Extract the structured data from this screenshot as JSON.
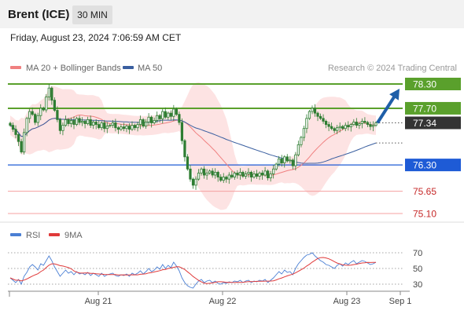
{
  "header": {
    "instrument": "Brent (ICE)",
    "interval": "30 MIN"
  },
  "datetime": "Friday, August 23, 2024 7:06:59 AM CET",
  "credit": "Research © 2024 Trading Central",
  "colors": {
    "bollinger": "#f08080",
    "bollinger_fill": "#fde0e0",
    "ma50": "#3a5fa0",
    "candle": "#2e7d32",
    "resistance": "#5aa02c",
    "support": "#1e5bd6",
    "lower_level": "#f4a0a0",
    "arrow": "#1f5fa8",
    "current_price_tag": "#333333",
    "rsi": "#4a7fd4",
    "rsi_ma": "#e03a3a"
  },
  "chart_data": [
    {
      "type": "candlestick",
      "title": "",
      "legend": [
        {
          "label": "MA 20 + Bollinger Bands",
          "color": "#f08080"
        },
        {
          "label": "MA 50",
          "color": "#3a5fa0"
        }
      ],
      "ylim": [
        75.0,
        78.4
      ],
      "levels": [
        {
          "value": 78.3,
          "label": "78.30",
          "kind": "resistance"
        },
        {
          "value": 77.7,
          "label": "77.70",
          "kind": "resistance"
        },
        {
          "value": 77.34,
          "label": "77.34",
          "kind": "current"
        },
        {
          "value": 76.3,
          "label": "76.30",
          "kind": "support"
        },
        {
          "value": 75.65,
          "label": "75.65",
          "kind": "minor"
        },
        {
          "value": 75.1,
          "label": "75.10",
          "kind": "minor"
        }
      ],
      "forecast_arrow": {
        "from": 77.34,
        "to": 78.3
      },
      "x_ticks": [
        "Aug 21",
        "Aug 22",
        "Aug 23",
        "Sep 1"
      ],
      "close": [
        77.28,
        77.18,
        77.05,
        76.88,
        76.62,
        77.1,
        77.45,
        77.62,
        77.55,
        77.35,
        77.52,
        77.7,
        77.66,
        77.98,
        78.2,
        77.9,
        77.65,
        77.42,
        77.15,
        77.28,
        77.42,
        77.32,
        77.4,
        77.3,
        77.45,
        77.35,
        77.38,
        77.32,
        77.42,
        77.28,
        77.36,
        77.3,
        77.22,
        77.34,
        77.2,
        77.26,
        77.28,
        77.34,
        77.22,
        77.18,
        77.24,
        77.2,
        77.26,
        77.18,
        77.28,
        77.22,
        77.3,
        77.42,
        77.26,
        77.36,
        77.48,
        77.34,
        77.4,
        77.52,
        77.44,
        77.62,
        77.48,
        77.58,
        77.5,
        77.68,
        77.55,
        77.35,
        76.9,
        76.5,
        76.2,
        75.95,
        75.8,
        75.95,
        76.1,
        76.2,
        76.05,
        76.1,
        76.15,
        76.05,
        76.12,
        76.0,
        75.92,
        76.0,
        75.95,
        76.05,
        76.0,
        76.1,
        76.05,
        76.12,
        76.02,
        76.08,
        76.12,
        76.0,
        76.08,
        76.02,
        76.1,
        76.05,
        76.15,
        75.98,
        76.08,
        76.2,
        76.32,
        76.45,
        76.35,
        76.5,
        76.4,
        76.42,
        76.28,
        76.55,
        76.8,
        76.98,
        77.2,
        77.45,
        77.62,
        77.7,
        77.58,
        77.5,
        77.45,
        77.38,
        77.3,
        77.25,
        77.2,
        77.15,
        77.22,
        77.25,
        77.2,
        77.28,
        77.24,
        77.3,
        77.36,
        77.28,
        77.32,
        77.38,
        77.35,
        77.3,
        77.25,
        77.28,
        77.34
      ]
    },
    {
      "type": "line",
      "title": "",
      "legend": [
        {
          "label": "RSI",
          "color": "#4a7fd4"
        },
        {
          "label": "9MA",
          "color": "#e03a3a"
        }
      ],
      "ylim": [
        20,
        80
      ],
      "y_ticks": [
        70,
        50,
        30
      ],
      "rsi": [
        38,
        35,
        32,
        36,
        30,
        40,
        45,
        52,
        55,
        52,
        48,
        56,
        54,
        60,
        66,
        60,
        52,
        46,
        40,
        44,
        48,
        44,
        46,
        42,
        46,
        43,
        44,
        42,
        45,
        41,
        44,
        42,
        40,
        44,
        40,
        42,
        43,
        44,
        41,
        40,
        42,
        41,
        43,
        40,
        44,
        42,
        44,
        47,
        43,
        46,
        50,
        46,
        48,
        52,
        49,
        55,
        50,
        54,
        51,
        58,
        53,
        47,
        38,
        32,
        28,
        26,
        25,
        30,
        34,
        36,
        32,
        34,
        35,
        32,
        34,
        31,
        30,
        32,
        31,
        33,
        32,
        34,
        33,
        35,
        32,
        34,
        35,
        32,
        34,
        33,
        35,
        34,
        36,
        32,
        35,
        38,
        42,
        46,
        43,
        48,
        45,
        46,
        42,
        50,
        56,
        60,
        64,
        67,
        68,
        70,
        66,
        63,
        60,
        58,
        55,
        54,
        52,
        50,
        54,
        56,
        53,
        57,
        55,
        58,
        60,
        56,
        58,
        60,
        59,
        57,
        55,
        56,
        58
      ]
    }
  ]
}
